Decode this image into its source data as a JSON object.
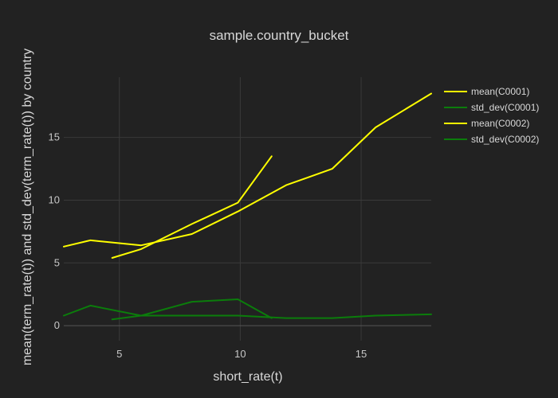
{
  "chart_data": {
    "type": "line",
    "title": "sample.country_bucket",
    "xlabel": "short_rate(t)",
    "ylabel": "mean(term_rate(t)) and std_dev(term_rate(t)) by country",
    "xlim": [
      2.7,
      17.9
    ],
    "ylim": [
      -1.2,
      19.8
    ],
    "xticks": [
      5,
      10,
      15
    ],
    "yticks": [
      0,
      5,
      10,
      15
    ],
    "grid": true,
    "legend_position": "top-right",
    "series": [
      {
        "name": "mean(C0001)",
        "color": "#ffff00",
        "x": [
          4.7,
          5.9,
          8.0,
          9.9,
          11.3
        ],
        "y": [
          5.4,
          6.1,
          8.1,
          9.8,
          13.5
        ]
      },
      {
        "name": "std_dev(C0001)",
        "color": "#0b7d0b",
        "x": [
          4.7,
          5.9,
          8.0,
          9.9,
          11.3
        ],
        "y": [
          0.5,
          0.8,
          1.9,
          2.1,
          0.6
        ]
      },
      {
        "name": "mean(C0002)",
        "color": "#ffff00",
        "x": [
          2.7,
          3.8,
          5.9,
          8.0,
          9.9,
          11.9,
          13.8,
          15.6,
          17.9
        ],
        "y": [
          6.3,
          6.8,
          6.4,
          7.3,
          9.1,
          11.2,
          12.5,
          15.8,
          18.5
        ]
      },
      {
        "name": "std_dev(C0002)",
        "color": "#0b7d0b",
        "x": [
          2.7,
          3.8,
          5.9,
          8.0,
          9.9,
          11.9,
          13.8,
          15.6,
          17.9
        ],
        "y": [
          0.8,
          1.6,
          0.8,
          0.8,
          0.8,
          0.6,
          0.6,
          0.8,
          0.9
        ]
      }
    ]
  }
}
